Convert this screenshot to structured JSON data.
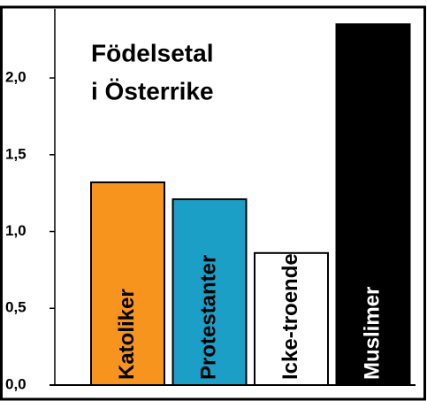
{
  "chart_data": {
    "type": "bar",
    "title": [
      "Födelsetal",
      "i Österrike"
    ],
    "categories": [
      "Katoliker",
      "Protestanter",
      "Icke-troende",
      "Muslimer"
    ],
    "values": [
      1.32,
      1.21,
      0.86,
      2.35
    ],
    "colors": [
      "#f7941d",
      "#1b9fc6",
      "#ffffff",
      "#000000"
    ],
    "ylim": [
      0,
      2.45
    ],
    "yticks": [
      {
        "value": 0,
        "label": "0,0"
      },
      {
        "value": 0.5,
        "label": "0,5"
      },
      {
        "value": 1,
        "label": "1,0"
      },
      {
        "value": 1.5,
        "label": "1,5"
      },
      {
        "value": 2,
        "label": "2,0"
      }
    ],
    "grid": false
  }
}
